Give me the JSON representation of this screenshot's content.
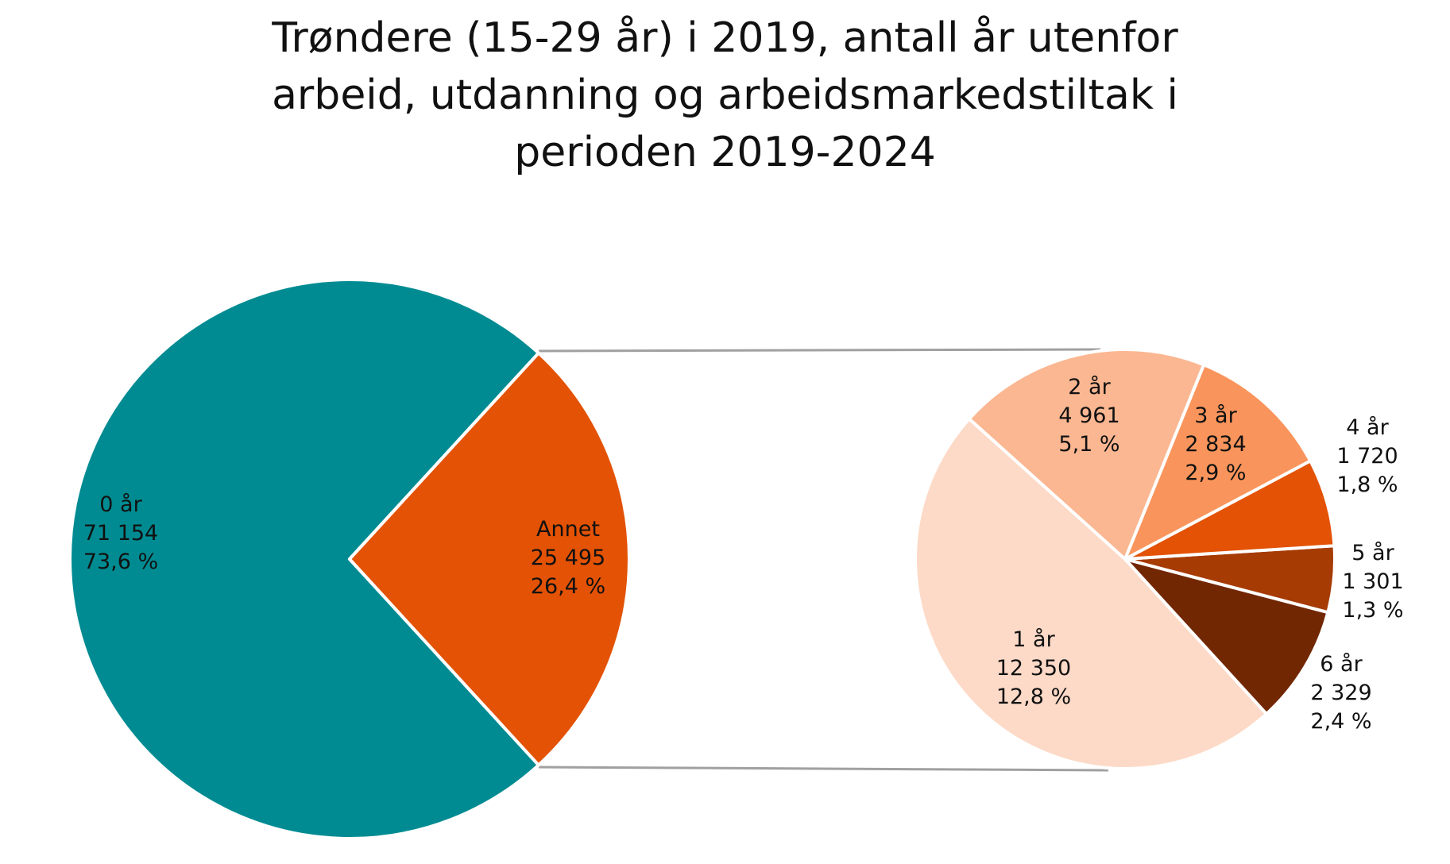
{
  "chart_data": {
    "type": "pie",
    "subtype": "pie-of-pie",
    "title_lines": [
      "Trøndere (15-29 år) i 2019, antall år utenfor",
      "arbeid, utdanning og arbeidsmarkedstiltak i",
      "perioden 2019-2024"
    ],
    "main_pie": [
      {
        "label": "0 år",
        "value": 71154,
        "value_text": "71 154",
        "percent_text": "73,6 %",
        "color": "#008B92"
      },
      {
        "label": "Annet",
        "value": 25495,
        "value_text": "25 495",
        "percent_text": "26,4 %",
        "color": "#E35205"
      }
    ],
    "secondary_pie": [
      {
        "label": "1 år",
        "value": 12350,
        "value_text": "12 350",
        "percent_text": "12,8 %",
        "color": "#FDDAC7"
      },
      {
        "label": "6 år",
        "value": 2329,
        "value_text": "2 329",
        "percent_text": "2,4 %",
        "color": "#722703"
      },
      {
        "label": "5 år",
        "value": 1301,
        "value_text": "1 301",
        "percent_text": "1,3 %",
        "color": "#A63B04"
      },
      {
        "label": "4 år",
        "value": 1720,
        "value_text": "1 720",
        "percent_text": "1,8 %",
        "color": "#E35205"
      },
      {
        "label": "3 år",
        "value": 2834,
        "value_text": "2 834",
        "percent_text": "2,9 %",
        "color": "#F9955C"
      },
      {
        "label": "2 år",
        "value": 4961,
        "value_text": "4 961",
        "percent_text": "5,1 %",
        "color": "#FBB791"
      }
    ],
    "legend": "none",
    "connector_color": "#A0A0A0"
  }
}
